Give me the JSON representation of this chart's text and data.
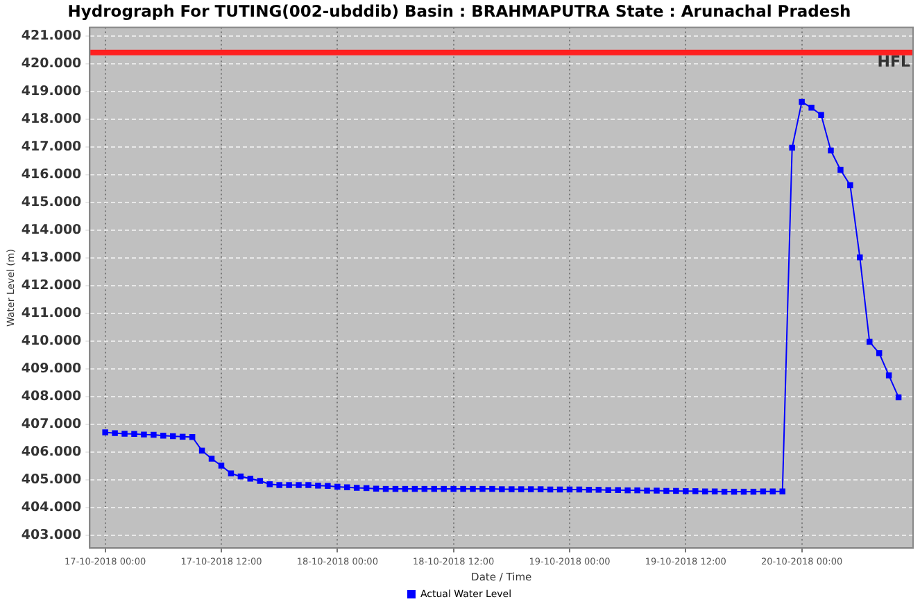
{
  "chart_data": {
    "type": "line",
    "title": "Hydrograph For TUTING(002-ubddib) Basin : BRAHMAPUTRA State : Arunachal Pradesh",
    "xlabel": "Date / Time",
    "ylabel": "Water Level (m)",
    "x": [
      "2018-10-17T00:00",
      "2018-10-17T01:00",
      "2018-10-17T02:00",
      "2018-10-17T03:00",
      "2018-10-17T04:00",
      "2018-10-17T05:00",
      "2018-10-17T06:00",
      "2018-10-17T07:00",
      "2018-10-17T08:00",
      "2018-10-17T09:00",
      "2018-10-17T10:00",
      "2018-10-17T11:00",
      "2018-10-17T12:00",
      "2018-10-17T13:00",
      "2018-10-17T14:00",
      "2018-10-17T15:00",
      "2018-10-17T16:00",
      "2018-10-17T17:00",
      "2018-10-17T18:00",
      "2018-10-17T19:00",
      "2018-10-17T20:00",
      "2018-10-17T21:00",
      "2018-10-17T22:00",
      "2018-10-17T23:00",
      "2018-10-18T00:00",
      "2018-10-18T01:00",
      "2018-10-18T02:00",
      "2018-10-18T03:00",
      "2018-10-18T04:00",
      "2018-10-18T05:00",
      "2018-10-18T06:00",
      "2018-10-18T07:00",
      "2018-10-18T08:00",
      "2018-10-18T09:00",
      "2018-10-18T10:00",
      "2018-10-18T11:00",
      "2018-10-18T12:00",
      "2018-10-18T13:00",
      "2018-10-18T14:00",
      "2018-10-18T15:00",
      "2018-10-18T16:00",
      "2018-10-18T17:00",
      "2018-10-18T18:00",
      "2018-10-18T19:00",
      "2018-10-18T20:00",
      "2018-10-18T21:00",
      "2018-10-18T22:00",
      "2018-10-18T23:00",
      "2018-10-19T00:00",
      "2018-10-19T01:00",
      "2018-10-19T02:00",
      "2018-10-19T03:00",
      "2018-10-19T04:00",
      "2018-10-19T05:00",
      "2018-10-19T06:00",
      "2018-10-19T07:00",
      "2018-10-19T08:00",
      "2018-10-19T09:00",
      "2018-10-19T10:00",
      "2018-10-19T11:00",
      "2018-10-19T12:00",
      "2018-10-19T13:00",
      "2018-10-19T14:00",
      "2018-10-19T15:00",
      "2018-10-19T16:00",
      "2018-10-19T17:00",
      "2018-10-19T18:00",
      "2018-10-19T19:00",
      "2018-10-19T20:00",
      "2018-10-19T21:00",
      "2018-10-19T22:00",
      "2018-10-19T23:00",
      "2018-10-20T00:00",
      "2018-10-20T01:00",
      "2018-10-20T02:00",
      "2018-10-20T03:00",
      "2018-10-20T04:00",
      "2018-10-20T05:00",
      "2018-10-20T06:00",
      "2018-10-20T07:00",
      "2018-10-20T08:00",
      "2018-10-20T09:00",
      "2018-10-20T10:00"
    ],
    "series": [
      {
        "name": "Actual Water Level",
        "color": "#0000ff",
        "values": [
          406.72,
          406.69,
          406.67,
          406.66,
          406.64,
          406.63,
          406.6,
          406.58,
          406.56,
          406.55,
          406.06,
          405.77,
          405.52,
          405.24,
          405.13,
          405.05,
          404.97,
          404.85,
          404.82,
          404.82,
          404.82,
          404.82,
          404.8,
          404.79,
          404.76,
          404.74,
          404.72,
          404.71,
          404.69,
          404.68,
          404.68,
          404.68,
          404.68,
          404.68,
          404.68,
          404.68,
          404.68,
          404.68,
          404.68,
          404.68,
          404.68,
          404.67,
          404.67,
          404.67,
          404.67,
          404.67,
          404.66,
          404.66,
          404.66,
          404.66,
          404.65,
          404.65,
          404.64,
          404.64,
          404.63,
          404.63,
          404.62,
          404.62,
          404.61,
          404.61,
          404.6,
          404.6,
          404.59,
          404.59,
          404.58,
          404.58,
          404.58,
          404.58,
          404.59,
          404.59,
          404.59,
          416.97,
          418.62,
          418.41,
          418.15,
          416.87,
          416.17,
          415.62,
          413.02,
          409.98,
          409.57,
          408.77,
          407.98
        ]
      }
    ],
    "xlim": [
      "2018-10-16T22:24",
      "2018-10-20T11:30"
    ],
    "xticks": [
      {
        "value": "2018-10-17T00:00",
        "label": "17-10-2018 00:00"
      },
      {
        "value": "2018-10-17T12:00",
        "label": "17-10-2018 12:00"
      },
      {
        "value": "2018-10-18T00:00",
        "label": "18-10-2018 00:00"
      },
      {
        "value": "2018-10-18T12:00",
        "label": "18-10-2018 12:00"
      },
      {
        "value": "2018-10-19T00:00",
        "label": "19-10-2018 00:00"
      },
      {
        "value": "2018-10-19T12:00",
        "label": "19-10-2018 12:00"
      },
      {
        "value": "2018-10-20T00:00",
        "label": "20-10-2018 00:00"
      }
    ],
    "ylim": [
      402.55,
      421.3
    ],
    "yticks": [
      {
        "value": 403,
        "label": "403.000"
      },
      {
        "value": 404,
        "label": "404.000"
      },
      {
        "value": 405,
        "label": "405.000"
      },
      {
        "value": 406,
        "label": "406.000"
      },
      {
        "value": 407,
        "label": "407.000"
      },
      {
        "value": 408,
        "label": "408.000"
      },
      {
        "value": 409,
        "label": "409.000"
      },
      {
        "value": 410,
        "label": "410.000"
      },
      {
        "value": 411,
        "label": "411.000"
      },
      {
        "value": 412,
        "label": "412.000"
      },
      {
        "value": 413,
        "label": "413.000"
      },
      {
        "value": 414,
        "label": "414.000"
      },
      {
        "value": 415,
        "label": "415.000"
      },
      {
        "value": 416,
        "label": "416.000"
      },
      {
        "value": 417,
        "label": "417.000"
      },
      {
        "value": 418,
        "label": "418.000"
      },
      {
        "value": 419,
        "label": "419.000"
      },
      {
        "value": 420,
        "label": "420.000"
      },
      {
        "value": 421,
        "label": "421.000"
      }
    ],
    "ref_lines": [
      {
        "axis": "y",
        "value": 420.4,
        "label": "HFL",
        "color": "#ff2020"
      }
    ],
    "grid": true,
    "legend": "bottom",
    "marker": "square",
    "line_style": "solid"
  }
}
